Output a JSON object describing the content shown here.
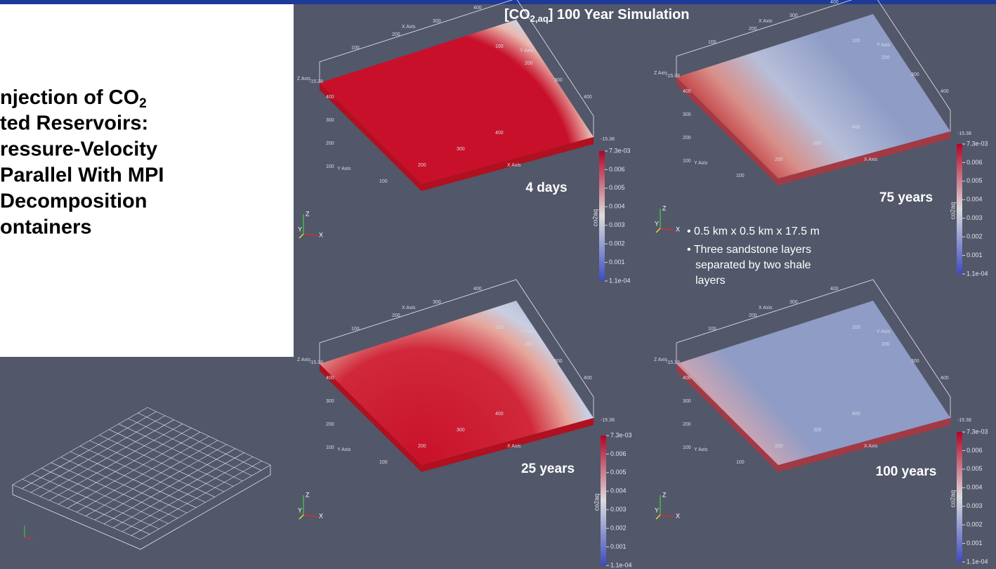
{
  "header": {
    "title": "[CO",
    "title_sub": "2,aq",
    "title_rest": "] 100 Year Simulation"
  },
  "left_title": {
    "lines": [
      "njection of CO",
      "ted Reservoirs:",
      "ressure-Velocity",
      "Parallel With MPI",
      "Decomposition",
      "ontainers"
    ],
    "line0_sub": "2"
  },
  "axes": {
    "x_axis": "X Axis",
    "y_axis": "Y Axis",
    "z_axis": "Z Axis",
    "z_value": "-15.38",
    "ticks": [
      "100",
      "200",
      "300",
      "400"
    ],
    "triad": [
      "X",
      "Y",
      "Z"
    ]
  },
  "colorbar": {
    "title": "co2aq",
    "ticks": [
      "7.3e-03",
      "0.006",
      "0.005",
      "0.004",
      "0.003",
      "0.002",
      "0.001",
      "1.1e-04"
    ]
  },
  "panels": [
    {
      "time": "4 days"
    },
    {
      "time": "75 years"
    },
    {
      "time": "25 years"
    },
    {
      "time": "100 years"
    }
  ],
  "bullets": [
    "0.5 km x 0.5 km x 17.5 m",
    "Three sandstone layers separated by two shale layers"
  ]
}
